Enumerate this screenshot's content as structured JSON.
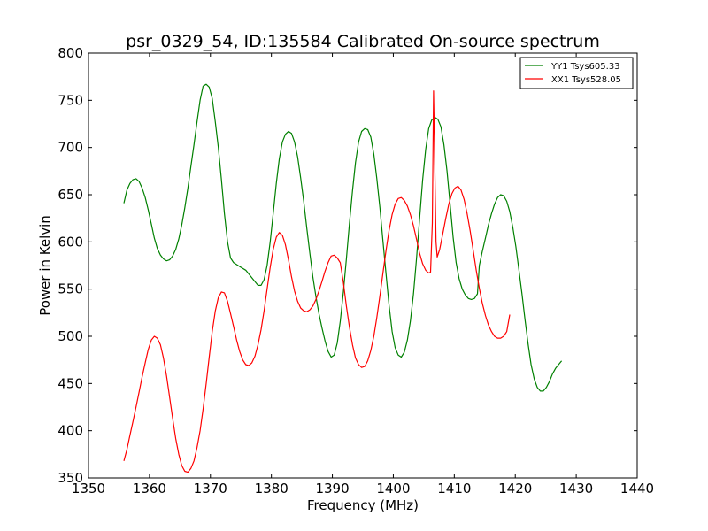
{
  "chart_data": {
    "type": "line",
    "title": "psr_0329_54, ID:135584 Calibrated On-source spectrum",
    "xlabel": "Frequency (MHz)",
    "ylabel": "Power in Kelvin",
    "xlim": [
      1350,
      1440
    ],
    "ylim": [
      350,
      800
    ],
    "xticks": [
      1350,
      1360,
      1370,
      1380,
      1390,
      1400,
      1410,
      1420,
      1430,
      1440
    ],
    "yticks": [
      350,
      400,
      450,
      500,
      550,
      600,
      650,
      700,
      750,
      800
    ],
    "grid": false,
    "legend_position": "top-right",
    "series": [
      {
        "name": "YY1 Tsys605.33",
        "color": "#008000",
        "points": [
          [
            1355.8,
            641
          ],
          [
            1356.3,
            655
          ],
          [
            1356.8,
            662
          ],
          [
            1357.3,
            666
          ],
          [
            1357.8,
            667
          ],
          [
            1358.3,
            664
          ],
          [
            1358.8,
            657
          ],
          [
            1359.3,
            647
          ],
          [
            1359.8,
            634
          ],
          [
            1360.3,
            619
          ],
          [
            1360.8,
            604
          ],
          [
            1361.3,
            593
          ],
          [
            1361.8,
            586
          ],
          [
            1362.3,
            582
          ],
          [
            1362.8,
            580
          ],
          [
            1363.3,
            581
          ],
          [
            1363.8,
            585
          ],
          [
            1364.3,
            592
          ],
          [
            1364.8,
            603
          ],
          [
            1365.3,
            618
          ],
          [
            1365.8,
            636
          ],
          [
            1366.3,
            657
          ],
          [
            1366.8,
            680
          ],
          [
            1367.3,
            703
          ],
          [
            1367.8,
            727
          ],
          [
            1368.3,
            750
          ],
          [
            1368.8,
            765
          ],
          [
            1369.3,
            767
          ],
          [
            1369.8,
            764
          ],
          [
            1370.3,
            752
          ],
          [
            1370.8,
            727
          ],
          [
            1371.3,
            700
          ],
          [
            1371.8,
            666
          ],
          [
            1372.3,
            630
          ],
          [
            1372.8,
            600
          ],
          [
            1373.3,
            583
          ],
          [
            1373.8,
            578
          ],
          [
            1374.8,
            574
          ],
          [
            1375.8,
            570
          ],
          [
            1376.8,
            562
          ],
          [
            1377.8,
            554
          ],
          [
            1378.3,
            554
          ],
          [
            1378.8,
            560
          ],
          [
            1379.3,
            575
          ],
          [
            1379.8,
            600
          ],
          [
            1380.3,
            630
          ],
          [
            1380.8,
            662
          ],
          [
            1381.3,
            688
          ],
          [
            1381.8,
            706
          ],
          [
            1382.3,
            714
          ],
          [
            1382.8,
            717
          ],
          [
            1383.3,
            715
          ],
          [
            1383.8,
            706
          ],
          [
            1384.3,
            690
          ],
          [
            1384.8,
            668
          ],
          [
            1385.3,
            643
          ],
          [
            1385.8,
            615
          ],
          [
            1386.3,
            588
          ],
          [
            1386.8,
            563
          ],
          [
            1387.3,
            542
          ],
          [
            1387.8,
            524
          ],
          [
            1388.3,
            509
          ],
          [
            1388.8,
            495
          ],
          [
            1389.3,
            484
          ],
          [
            1389.8,
            478
          ],
          [
            1390.3,
            480
          ],
          [
            1390.8,
            493
          ],
          [
            1391.3,
            516
          ],
          [
            1391.8,
            547
          ],
          [
            1392.3,
            582
          ],
          [
            1392.8,
            619
          ],
          [
            1393.3,
            654
          ],
          [
            1393.8,
            684
          ],
          [
            1394.3,
            706
          ],
          [
            1394.8,
            717
          ],
          [
            1395.3,
            720
          ],
          [
            1395.8,
            719
          ],
          [
            1396.3,
            711
          ],
          [
            1396.8,
            693
          ],
          [
            1397.3,
            667
          ],
          [
            1397.8,
            636
          ],
          [
            1398.3,
            601
          ],
          [
            1398.8,
            566
          ],
          [
            1399.3,
            533
          ],
          [
            1399.8,
            505
          ],
          [
            1400.3,
            488
          ],
          [
            1400.8,
            480
          ],
          [
            1401.3,
            478
          ],
          [
            1401.8,
            483
          ],
          [
            1402.3,
            496
          ],
          [
            1402.8,
            516
          ],
          [
            1403.3,
            545
          ],
          [
            1403.8,
            582
          ],
          [
            1404.3,
            624
          ],
          [
            1404.8,
            665
          ],
          [
            1405.3,
            698
          ],
          [
            1405.8,
            720
          ],
          [
            1406.3,
            729
          ],
          [
            1406.8,
            732
          ],
          [
            1407.3,
            730
          ],
          [
            1407.8,
            722
          ],
          [
            1408.3,
            703
          ],
          [
            1408.8,
            675
          ],
          [
            1409.3,
            641
          ],
          [
            1409.8,
            605
          ],
          [
            1410.3,
            578
          ],
          [
            1410.8,
            561
          ],
          [
            1411.3,
            550
          ],
          [
            1411.8,
            544
          ],
          [
            1412.3,
            540
          ],
          [
            1412.8,
            539
          ],
          [
            1413.3,
            540
          ],
          [
            1413.8,
            545
          ],
          [
            1414.1,
            575
          ],
          [
            1414.6,
            590
          ],
          [
            1415.1,
            604
          ],
          [
            1415.6,
            618
          ],
          [
            1416.1,
            630
          ],
          [
            1416.6,
            640
          ],
          [
            1417.1,
            647
          ],
          [
            1417.6,
            650
          ],
          [
            1418.1,
            649
          ],
          [
            1418.6,
            643
          ],
          [
            1419.1,
            632
          ],
          [
            1419.6,
            615
          ],
          [
            1420.1,
            595
          ],
          [
            1420.6,
            570
          ],
          [
            1421.1,
            545
          ],
          [
            1421.6,
            518
          ],
          [
            1422.1,
            492
          ],
          [
            1422.6,
            470
          ],
          [
            1423.1,
            455
          ],
          [
            1423.6,
            446
          ],
          [
            1424.1,
            442
          ],
          [
            1424.6,
            442
          ],
          [
            1425.1,
            446
          ],
          [
            1425.6,
            452
          ],
          [
            1426.1,
            460
          ],
          [
            1426.6,
            466
          ],
          [
            1427.1,
            470
          ],
          [
            1427.6,
            474
          ]
        ]
      },
      {
        "name": "XX1 Tsys528.05",
        "color": "#ff0000",
        "points": [
          [
            1355.8,
            368
          ],
          [
            1356.3,
            380
          ],
          [
            1356.8,
            395
          ],
          [
            1357.3,
            410
          ],
          [
            1357.8,
            425
          ],
          [
            1358.3,
            441
          ],
          [
            1358.8,
            457
          ],
          [
            1359.3,
            472
          ],
          [
            1359.8,
            486
          ],
          [
            1360.3,
            496
          ],
          [
            1360.8,
            500
          ],
          [
            1361.3,
            498
          ],
          [
            1361.8,
            491
          ],
          [
            1362.3,
            477
          ],
          [
            1362.8,
            458
          ],
          [
            1363.3,
            436
          ],
          [
            1363.8,
            413
          ],
          [
            1364.3,
            392
          ],
          [
            1364.8,
            375
          ],
          [
            1365.3,
            363
          ],
          [
            1365.8,
            357
          ],
          [
            1366.3,
            356
          ],
          [
            1366.8,
            360
          ],
          [
            1367.3,
            368
          ],
          [
            1367.8,
            382
          ],
          [
            1368.3,
            400
          ],
          [
            1368.8,
            423
          ],
          [
            1369.3,
            450
          ],
          [
            1369.8,
            478
          ],
          [
            1370.3,
            505
          ],
          [
            1370.8,
            527
          ],
          [
            1371.3,
            541
          ],
          [
            1371.8,
            547
          ],
          [
            1372.3,
            546
          ],
          [
            1372.8,
            537
          ],
          [
            1373.3,
            524
          ],
          [
            1373.8,
            510
          ],
          [
            1374.3,
            496
          ],
          [
            1374.8,
            484
          ],
          [
            1375.3,
            475
          ],
          [
            1375.8,
            470
          ],
          [
            1376.3,
            469
          ],
          [
            1376.8,
            472
          ],
          [
            1377.3,
            479
          ],
          [
            1377.8,
            491
          ],
          [
            1378.3,
            507
          ],
          [
            1378.8,
            527
          ],
          [
            1379.3,
            550
          ],
          [
            1379.8,
            573
          ],
          [
            1380.3,
            592
          ],
          [
            1380.8,
            605
          ],
          [
            1381.3,
            610
          ],
          [
            1381.8,
            607
          ],
          [
            1382.3,
            597
          ],
          [
            1382.8,
            581
          ],
          [
            1383.3,
            563
          ],
          [
            1383.8,
            548
          ],
          [
            1384.3,
            537
          ],
          [
            1384.8,
            530
          ],
          [
            1385.3,
            527
          ],
          [
            1385.8,
            526
          ],
          [
            1386.3,
            528
          ],
          [
            1386.8,
            532
          ],
          [
            1387.3,
            539
          ],
          [
            1387.8,
            548
          ],
          [
            1388.3,
            558
          ],
          [
            1388.8,
            569
          ],
          [
            1389.3,
            578
          ],
          [
            1389.8,
            585
          ],
          [
            1390.3,
            586
          ],
          [
            1390.8,
            583
          ],
          [
            1391.3,
            578
          ],
          [
            1391.8,
            557
          ],
          [
            1392.3,
            532
          ],
          [
            1392.8,
            510
          ],
          [
            1393.3,
            491
          ],
          [
            1393.8,
            477
          ],
          [
            1394.3,
            470
          ],
          [
            1394.8,
            467
          ],
          [
            1395.3,
            468
          ],
          [
            1395.8,
            474
          ],
          [
            1396.3,
            485
          ],
          [
            1396.8,
            500
          ],
          [
            1397.3,
            520
          ],
          [
            1397.8,
            543
          ],
          [
            1398.3,
            567
          ],
          [
            1398.8,
            591
          ],
          [
            1399.3,
            612
          ],
          [
            1399.8,
            629
          ],
          [
            1400.3,
            640
          ],
          [
            1400.8,
            646
          ],
          [
            1401.3,
            647
          ],
          [
            1401.8,
            644
          ],
          [
            1402.3,
            638
          ],
          [
            1402.8,
            629
          ],
          [
            1403.3,
            617
          ],
          [
            1403.8,
            603
          ],
          [
            1404.3,
            588
          ],
          [
            1404.8,
            577
          ],
          [
            1405.3,
            570
          ],
          [
            1405.8,
            567
          ],
          [
            1406.1,
            568
          ],
          [
            1406.4,
            620
          ],
          [
            1406.6,
            760
          ],
          [
            1406.8,
            680
          ],
          [
            1407.0,
            600
          ],
          [
            1407.2,
            584
          ],
          [
            1407.6,
            592
          ],
          [
            1408.1,
            608
          ],
          [
            1408.6,
            625
          ],
          [
            1409.1,
            640
          ],
          [
            1409.6,
            651
          ],
          [
            1410.1,
            657
          ],
          [
            1410.6,
            659
          ],
          [
            1411.1,
            655
          ],
          [
            1411.6,
            645
          ],
          [
            1412.1,
            630
          ],
          [
            1412.6,
            612
          ],
          [
            1413.1,
            591
          ],
          [
            1413.6,
            570
          ],
          [
            1414.1,
            551
          ],
          [
            1414.6,
            535
          ],
          [
            1415.1,
            522
          ],
          [
            1415.6,
            512
          ],
          [
            1416.1,
            505
          ],
          [
            1416.6,
            500
          ],
          [
            1417.1,
            498
          ],
          [
            1417.6,
            498
          ],
          [
            1418.1,
            500
          ],
          [
            1418.6,
            505
          ],
          [
            1419.1,
            523
          ]
        ]
      }
    ]
  }
}
